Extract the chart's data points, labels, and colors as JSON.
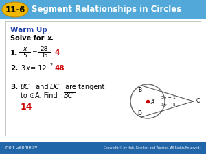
{
  "title_bg_left": "#5aabdc",
  "title_bg_right": "#4090bb",
  "title_prefix": "11-6",
  "title_prefix_bg": "#f0b800",
  "title_text": "Segment Relationships in Circles",
  "title_text_color": "#ffffff",
  "warm_up_color": "#2255aa",
  "answer_color": "#cc0000",
  "content_bg": "#ffffff",
  "content_border": "#cccccc",
  "footer_bg": "#2266aa",
  "footer_text": "Holt Geometry",
  "footer_right": "Copyright © by Holt, Rinehart and Winston. All Rights Reserved.",
  "warm_up_label": "Warm Up",
  "solve_label": "Solve for",
  "q1_ans": "4",
  "q2_ans": "48",
  "q3_ans": "14",
  "label_DC": "3y + 5",
  "label_BC": "5y − 1",
  "label_D": "D",
  "label_B": "B",
  "label_C": "C",
  "label_A": "A"
}
